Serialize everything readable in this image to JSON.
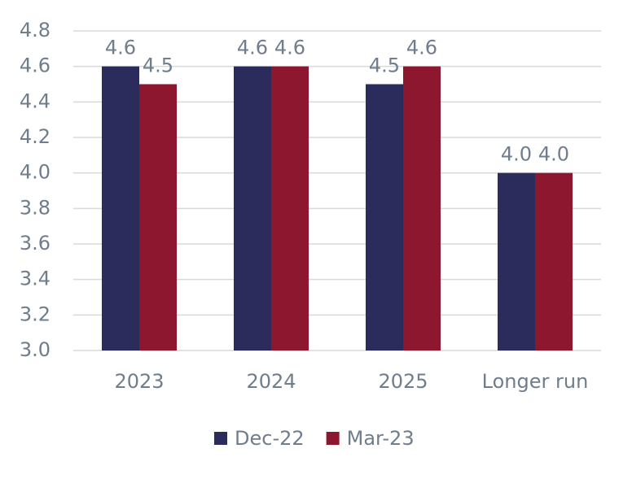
{
  "chart_data": {
    "type": "bar",
    "categories": [
      "2023",
      "2024",
      "2025",
      "Longer run"
    ],
    "series": [
      {
        "name": "Dec-22",
        "color": "#2b2b5c",
        "values": [
          4.6,
          4.6,
          4.5,
          4
        ],
        "value_labels": [
          "4.6",
          "4.6",
          "4.5",
          "4.0"
        ]
      },
      {
        "name": "Mar-23",
        "color": "#8e1730",
        "values": [
          4.5,
          4.6,
          4.6,
          4
        ],
        "value_labels": [
          "4.5",
          "4.6",
          "4.6",
          "4.0"
        ]
      }
    ],
    "ylim": [
      3,
      4.8
    ],
    "yticks": [
      {
        "value": 3,
        "label": "3.0"
      },
      3.2,
      3.4,
      3.6,
      3.8,
      {
        "value": 4,
        "label": "4.0"
      },
      4.2,
      4.4,
      4.6,
      4.8
    ],
    "grid": true,
    "legend": "bottom"
  }
}
